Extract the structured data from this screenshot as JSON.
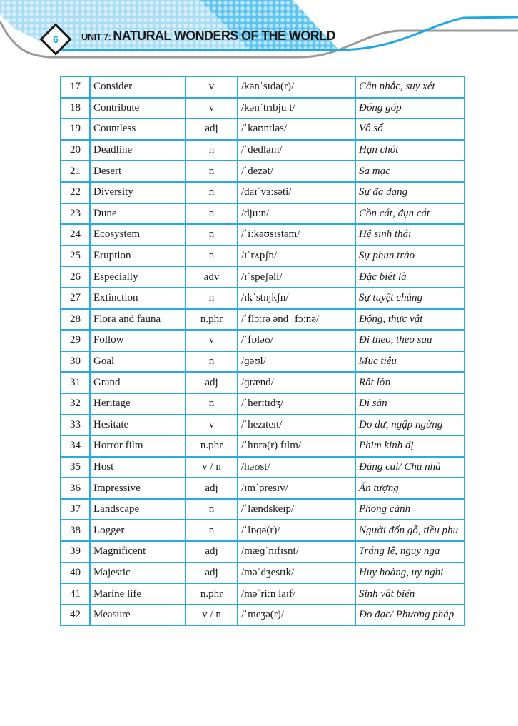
{
  "header": {
    "page_number": "6",
    "unit_label": "UNIT 7: ",
    "unit_title": "NATURAL WONDERS OF THE WORLD",
    "accent_color": "#29abe2"
  },
  "vocabulary": [
    {
      "no": "17",
      "word": "Consider",
      "pos": "v",
      "phonetic": "/kənˈsɪdə(r)/",
      "meaning": "Cân nhắc, suy xét"
    },
    {
      "no": "18",
      "word": "Contribute",
      "pos": "v",
      "phonetic": "/kənˈtrɪbjuːt/",
      "meaning": "Đóng góp"
    },
    {
      "no": "19",
      "word": "Countless",
      "pos": "adj",
      "phonetic": "/ˈkaʊntləs/",
      "meaning": "Vô số"
    },
    {
      "no": "20",
      "word": "Deadline",
      "pos": "n",
      "phonetic": "/ˈdedlaɪn/",
      "meaning": "Hạn chót"
    },
    {
      "no": "21",
      "word": "Desert",
      "pos": "n",
      "phonetic": "/ˈdezət/",
      "meaning": "Sa mạc"
    },
    {
      "no": "22",
      "word": "Diversity",
      "pos": "n",
      "phonetic": "/daɪˈvɜːsəti/",
      "meaning": "Sự đa dạng"
    },
    {
      "no": "23",
      "word": "Dune",
      "pos": "n",
      "phonetic": "/djuːn/",
      "meaning": "Cồn cát, đụn cát"
    },
    {
      "no": "24",
      "word": "Ecosystem",
      "pos": "n",
      "phonetic": "/ˈiːkəʊsɪstəm/",
      "meaning": "Hệ sinh thái"
    },
    {
      "no": "25",
      "word": "Eruption",
      "pos": "n",
      "phonetic": "/ɪˈrʌpʃn/",
      "meaning": "Sự phun trào"
    },
    {
      "no": "26",
      "word": "Especially",
      "pos": "adv",
      "phonetic": "/ɪˈspeʃəli/",
      "meaning": "Đặc biệt là"
    },
    {
      "no": "27",
      "word": "Extinction",
      "pos": "n",
      "phonetic": "/ɪkˈstɪŋkʃn/",
      "meaning": "Sự tuyệt chủng"
    },
    {
      "no": "28",
      "word": "Flora and fauna",
      "pos": "n.phr",
      "phonetic": "/ˈflɔːrə ənd ˈfɔːnə/",
      "meaning": "Động, thực vật"
    },
    {
      "no": "29",
      "word": "Follow",
      "pos": "v",
      "phonetic": "/ˈfɒləʊ/",
      "meaning": "Đi theo, theo sau"
    },
    {
      "no": "30",
      "word": "Goal",
      "pos": "n",
      "phonetic": "/ɡəʊl/",
      "meaning": "Mục tiêu"
    },
    {
      "no": "31",
      "word": "Grand",
      "pos": "adj",
      "phonetic": "/ɡrænd/",
      "meaning": "Rất lớn"
    },
    {
      "no": "32",
      "word": "Heritage",
      "pos": "n",
      "phonetic": "/ˈherɪtɪdʒ/",
      "meaning": "Di sản"
    },
    {
      "no": "33",
      "word": "Hesitate",
      "pos": "v",
      "phonetic": "/ˈhezɪteɪt/",
      "meaning": "Do dự, ngập ngừng"
    },
    {
      "no": "34",
      "word": "Horror film",
      "pos": "n.phr",
      "phonetic": "/ˈhɒrə(r) fɪlm/",
      "meaning": "Phim kinh dị"
    },
    {
      "no": "35",
      "word": "Host",
      "pos": "v / n",
      "phonetic": "/həʊst/",
      "meaning": "Đăng cai/ Chủ nhà"
    },
    {
      "no": "36",
      "word": "Impressive",
      "pos": "adj",
      "phonetic": "/ɪmˈpresɪv/",
      "meaning": "Ấn tượng"
    },
    {
      "no": "37",
      "word": "Landscape",
      "pos": "n",
      "phonetic": "/ˈlændskeɪp/",
      "meaning": "Phong cảnh"
    },
    {
      "no": "38",
      "word": "Logger",
      "pos": "n",
      "phonetic": "/ˈlɒɡə(r)/",
      "meaning": "Người đốn gỗ, tiều phu"
    },
    {
      "no": "39",
      "word": "Magnificent",
      "pos": "adj",
      "phonetic": "/mæɡˈnɪfɪsnt/",
      "meaning": "Tráng lệ, nguy nga"
    },
    {
      "no": "40",
      "word": "Majestic",
      "pos": "adj",
      "phonetic": "/məˈdʒestɪk/",
      "meaning": "Huy hoàng, uy nghi"
    },
    {
      "no": "41",
      "word": "Marine life",
      "pos": "n.phr",
      "phonetic": "/məˈriːn laɪf/",
      "meaning": "Sinh vật biển"
    },
    {
      "no": "42",
      "word": "Measure",
      "pos": "v / n",
      "phonetic": "/ˈmeʒə(r)/",
      "meaning": "Đo đạc/ Phương pháp"
    }
  ]
}
